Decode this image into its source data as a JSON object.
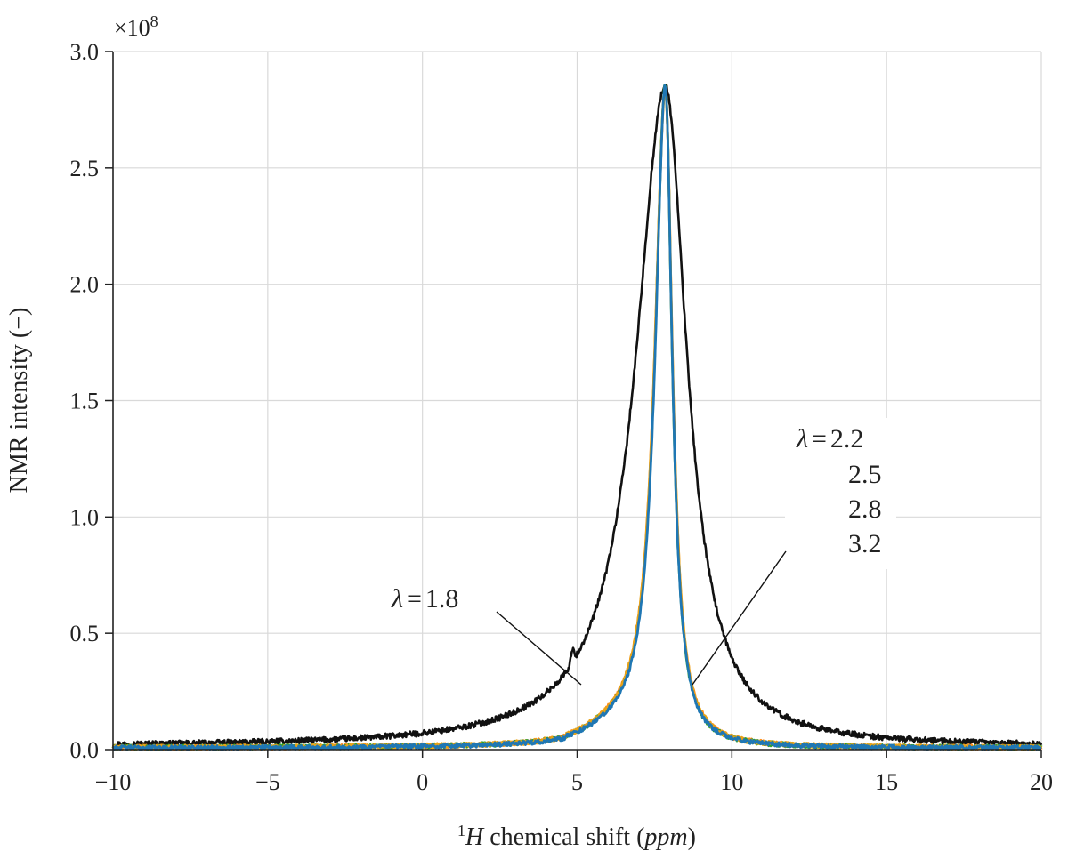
{
  "chart_data": {
    "type": "line",
    "title": "",
    "xlabel_sup": "1",
    "xlabel_italic": "H",
    "xlabel_mid": " chemical shift (",
    "xlabel_unit": "ppm",
    "xlabel_close": ")",
    "ylabel": "NMR intensity (−)",
    "y_multiplier_base": "×10",
    "y_multiplier_exp": "8",
    "xlim": [
      -10,
      20
    ],
    "ylim": [
      0,
      3.0
    ],
    "grid": true,
    "x_ticks": [
      -10,
      -5,
      0,
      5,
      10,
      15,
      20
    ],
    "x_tick_labels": [
      "−10",
      "−5",
      "0",
      "5",
      "10",
      "15",
      "20"
    ],
    "y_ticks": [
      0,
      0.5,
      1.0,
      1.5,
      2.0,
      2.5,
      3.0
    ],
    "y_tick_labels": [
      "0.0",
      "0.5",
      "1.0",
      "1.5",
      "2.0",
      "2.5",
      "3.0"
    ],
    "series": [
      {
        "name": "λ = 1.8",
        "color": "#111111",
        "center": 7.85,
        "peak": 2.85,
        "gamma_left": 1.15,
        "gamma_right": 0.85,
        "noise": 0.012,
        "offset": 0.012,
        "shoulder": 4.85
      },
      {
        "name": "λ = 2.2",
        "color": "#ff8c1a",
        "center": 7.85,
        "peak": 2.84,
        "gamma_left": 0.42,
        "gamma_right": 0.28,
        "noise": 0.01,
        "offset": 0.008
      },
      {
        "name": "λ = 2.5",
        "color": "#2ca02c",
        "center": 7.85,
        "peak": 2.85,
        "gamma_left": 0.41,
        "gamma_right": 0.27,
        "noise": 0.01,
        "offset": 0.008
      },
      {
        "name": "λ = 2.8",
        "color": "#e8a317",
        "center": 7.85,
        "peak": 2.83,
        "gamma_left": 0.42,
        "gamma_right": 0.28,
        "noise": 0.01,
        "offset": 0.008
      },
      {
        "name": "λ = 3.2",
        "color": "#1f77b4",
        "center": 7.85,
        "peak": 2.85,
        "gamma_left": 0.4,
        "gamma_right": 0.27,
        "noise": 0.009,
        "offset": 0.007
      }
    ],
    "annotations": {
      "low": {
        "prefix": "λ",
        "eq": "=",
        "value": "1.8"
      },
      "high": {
        "prefix": "λ",
        "eq": "=",
        "values": [
          "2.2",
          "2.5",
          "2.8",
          "3.2"
        ]
      }
    }
  }
}
